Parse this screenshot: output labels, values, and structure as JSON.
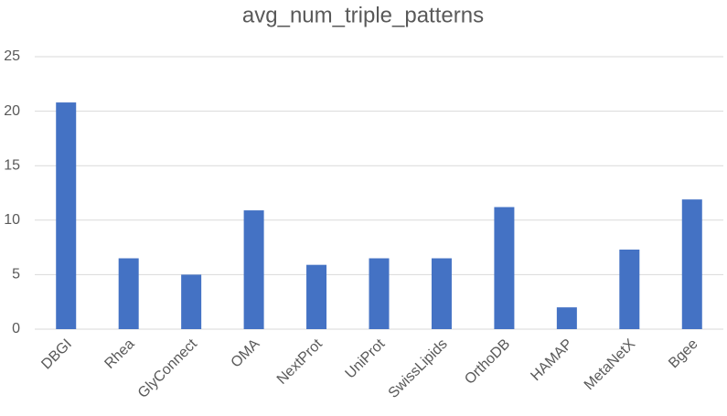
{
  "chart_data": {
    "type": "bar",
    "title": "avg_num_triple_patterns",
    "categories": [
      "DBGI",
      "Rhea",
      "GlyConnect",
      "OMA",
      "NextProt",
      "UniProt",
      "SwissLipids",
      "OrthoDB",
      "HAMAP",
      "MetaNetX",
      "Bgee"
    ],
    "values": [
      20.8,
      6.5,
      5.0,
      10.9,
      5.9,
      6.5,
      6.5,
      11.2,
      2.0,
      7.3,
      11.9
    ],
    "color": "#4472c4",
    "ylim": [
      0,
      25
    ],
    "yticks": [
      0,
      5,
      10,
      15,
      20,
      25
    ],
    "grid": true
  }
}
